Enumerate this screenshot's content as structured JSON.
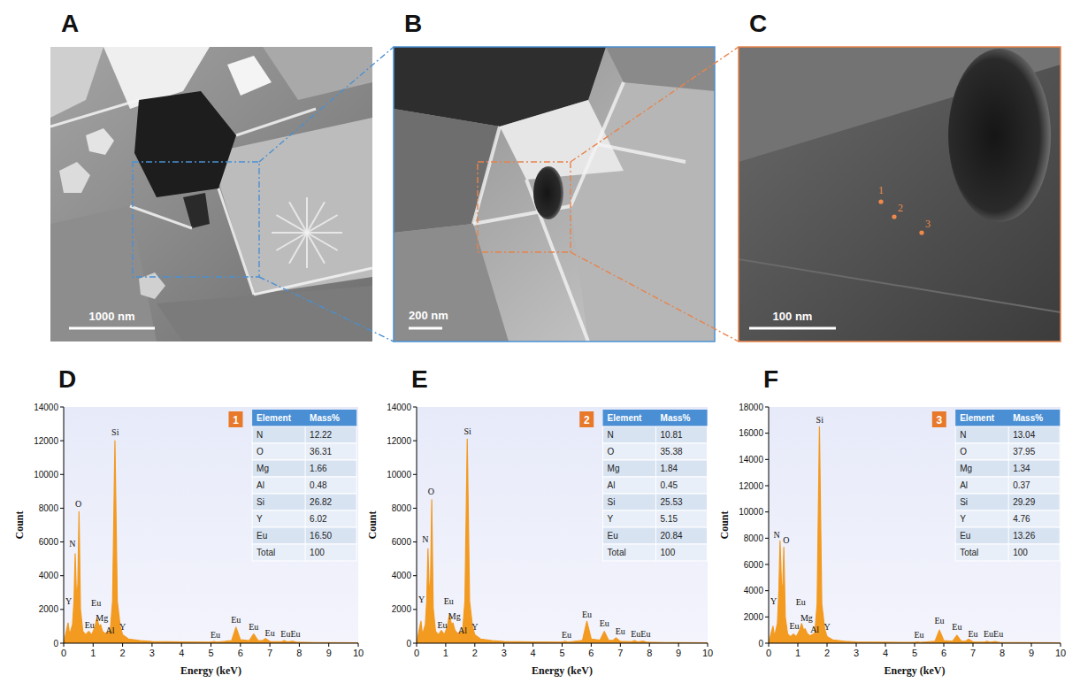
{
  "panels": [
    {
      "label": "A",
      "scale_bar": "1000 nm"
    },
    {
      "label": "B",
      "scale_bar": "200 nm"
    },
    {
      "label": "C",
      "scale_bar": "100 nm",
      "points": [
        "1",
        "2",
        "3"
      ]
    }
  ],
  "chart_data": [
    {
      "type": "area",
      "panel_label": "D",
      "badge": "1",
      "x_label": "Energy (keV)",
      "y_label": "Count",
      "color": "#f39a20",
      "x": [
        0,
        0.1,
        0.15,
        0.2,
        0.3,
        0.35,
        0.39,
        0.44,
        0.48,
        0.52,
        0.57,
        0.65,
        0.75,
        0.85,
        0.95,
        1.05,
        1.13,
        1.2,
        1.25,
        1.32,
        1.42,
        1.49,
        1.58,
        1.66,
        1.74,
        1.82,
        1.92,
        2.0,
        2.2,
        2.6,
        3.0,
        4.0,
        5.0,
        5.1,
        5.2,
        5.7,
        5.85,
        6.0,
        6.3,
        6.45,
        6.6,
        6.75,
        6.85,
        7.0,
        7.4,
        7.48,
        7.6,
        7.78,
        7.9,
        8.5,
        10
      ],
      "values": [
        0,
        800,
        1200,
        500,
        1100,
        2500,
        5300,
        2500,
        3500,
        7800,
        2000,
        700,
        500,
        700,
        500,
        900,
        1500,
        1000,
        1100,
        700,
        550,
        650,
        700,
        2500,
        12000,
        2500,
        1000,
        500,
        250,
        150,
        100,
        70,
        60,
        100,
        60,
        150,
        950,
        200,
        150,
        550,
        150,
        150,
        280,
        100,
        80,
        150,
        70,
        120,
        60,
        40,
        20
      ],
      "xlim": [
        0,
        10
      ],
      "xticks": [
        0,
        1,
        2,
        3,
        4,
        5,
        6,
        7,
        8,
        9,
        10
      ],
      "ylim": [
        0,
        14000
      ],
      "yticks": [
        0,
        2000,
        4000,
        6000,
        8000,
        10000,
        12000,
        14000
      ],
      "annotations": [
        {
          "text": "Y",
          "x": 0.17,
          "y": 2300
        },
        {
          "text": "N",
          "x": 0.3,
          "y": 5700
        },
        {
          "text": "O",
          "x": 0.5,
          "y": 8100
        },
        {
          "text": "Eu",
          "x": 0.88,
          "y": 900
        },
        {
          "text": "Eu",
          "x": 1.1,
          "y": 2200
        },
        {
          "text": "Mg",
          "x": 1.3,
          "y": 1300
        },
        {
          "text": "Al",
          "x": 1.58,
          "y": 600
        },
        {
          "text": "Y",
          "x": 2.0,
          "y": 800
        },
        {
          "text": "Si",
          "x": 1.75,
          "y": 12300
        },
        {
          "text": "Eu",
          "x": 5.15,
          "y": 300
        },
        {
          "text": "Eu",
          "x": 5.85,
          "y": 1200
        },
        {
          "text": "Eu",
          "x": 6.45,
          "y": 800
        },
        {
          "text": "Eu",
          "x": 7.0,
          "y": 400
        },
        {
          "text": "EuEu",
          "x": 7.7,
          "y": 350
        }
      ],
      "table": {
        "columns": [
          "Element",
          "Mass%"
        ],
        "rows": [
          [
            "N",
            "12.22"
          ],
          [
            "O",
            "36.31"
          ],
          [
            "Mg",
            "1.66"
          ],
          [
            "Al",
            "0.48"
          ],
          [
            "Si",
            "26.82"
          ],
          [
            "Y",
            "6.02"
          ],
          [
            "Eu",
            "16.50"
          ],
          [
            "Total",
            "100"
          ]
        ]
      }
    },
    {
      "type": "area",
      "panel_label": "E",
      "badge": "2",
      "x_label": "Energy (keV)",
      "y_label": "Count",
      "color": "#f39a20",
      "x": [
        0,
        0.1,
        0.15,
        0.2,
        0.3,
        0.35,
        0.39,
        0.44,
        0.48,
        0.52,
        0.57,
        0.65,
        0.75,
        0.85,
        0.95,
        1.05,
        1.13,
        1.2,
        1.25,
        1.32,
        1.42,
        1.49,
        1.58,
        1.66,
        1.74,
        1.82,
        1.92,
        2.0,
        2.2,
        2.6,
        3.0,
        4.0,
        5.0,
        5.1,
        5.2,
        5.7,
        5.85,
        6.0,
        6.3,
        6.45,
        6.6,
        6.75,
        6.85,
        7.0,
        7.4,
        7.48,
        7.6,
        7.78,
        7.9,
        8.5,
        10
      ],
      "values": [
        0,
        900,
        1300,
        500,
        1100,
        2600,
        5600,
        2700,
        3800,
        8500,
        2100,
        700,
        500,
        750,
        500,
        950,
        1700,
        1100,
        1200,
        750,
        550,
        650,
        700,
        2500,
        12100,
        2500,
        1000,
        500,
        250,
        150,
        100,
        70,
        60,
        110,
        60,
        170,
        1300,
        250,
        180,
        700,
        170,
        160,
        320,
        110,
        90,
        160,
        80,
        130,
        60,
        40,
        20
      ],
      "xlim": [
        0,
        10
      ],
      "xticks": [
        0,
        1,
        2,
        3,
        4,
        5,
        6,
        7,
        8,
        9,
        10
      ],
      "ylim": [
        0,
        14000
      ],
      "yticks": [
        0,
        2000,
        4000,
        6000,
        8000,
        10000,
        12000,
        14000
      ],
      "annotations": [
        {
          "text": "Y",
          "x": 0.17,
          "y": 2400
        },
        {
          "text": "N",
          "x": 0.3,
          "y": 6000
        },
        {
          "text": "O",
          "x": 0.5,
          "y": 8800
        },
        {
          "text": "Eu",
          "x": 0.88,
          "y": 900
        },
        {
          "text": "Eu",
          "x": 1.1,
          "y": 2300
        },
        {
          "text": "Mg",
          "x": 1.3,
          "y": 1400
        },
        {
          "text": "Al",
          "x": 1.58,
          "y": 600
        },
        {
          "text": "Y",
          "x": 2.0,
          "y": 800
        },
        {
          "text": "Si",
          "x": 1.75,
          "y": 12400
        },
        {
          "text": "Eu",
          "x": 5.15,
          "y": 300
        },
        {
          "text": "Eu",
          "x": 5.85,
          "y": 1500
        },
        {
          "text": "Eu",
          "x": 6.45,
          "y": 1000
        },
        {
          "text": "Eu",
          "x": 7.0,
          "y": 500
        },
        {
          "text": "EuEu",
          "x": 7.7,
          "y": 350
        }
      ],
      "table": {
        "columns": [
          "Element",
          "Mass%"
        ],
        "rows": [
          [
            "N",
            "10.81"
          ],
          [
            "O",
            "35.38"
          ],
          [
            "Mg",
            "1.84"
          ],
          [
            "Al",
            "0.45"
          ],
          [
            "Si",
            "25.53"
          ],
          [
            "Y",
            "5.15"
          ],
          [
            "Eu",
            "20.84"
          ],
          [
            "Total",
            "100"
          ]
        ]
      }
    },
    {
      "type": "area",
      "panel_label": "F",
      "badge": "3",
      "x_label": "Energy (keV)",
      "y_label": "Count",
      "color": "#f39a20",
      "x": [
        0,
        0.1,
        0.15,
        0.2,
        0.3,
        0.35,
        0.39,
        0.44,
        0.48,
        0.52,
        0.57,
        0.65,
        0.75,
        0.85,
        0.95,
        1.05,
        1.13,
        1.2,
        1.25,
        1.32,
        1.42,
        1.49,
        1.58,
        1.66,
        1.74,
        1.82,
        1.92,
        2.0,
        2.2,
        2.6,
        3.0,
        4.0,
        5.0,
        5.1,
        5.2,
        5.7,
        5.85,
        6.0,
        6.3,
        6.45,
        6.6,
        6.75,
        6.85,
        7.0,
        7.4,
        7.48,
        7.6,
        7.78,
        7.9,
        8.5,
        10
      ],
      "values": [
        0,
        900,
        1300,
        500,
        1500,
        4000,
        7800,
        4500,
        4000,
        7300,
        2000,
        700,
        500,
        700,
        500,
        950,
        1500,
        1000,
        1100,
        750,
        550,
        650,
        750,
        3000,
        16500,
        3000,
        1100,
        500,
        250,
        150,
        100,
        70,
        60,
        100,
        60,
        150,
        1000,
        200,
        150,
        600,
        150,
        150,
        300,
        100,
        80,
        150,
        70,
        120,
        60,
        40,
        20
      ],
      "xlim": [
        0,
        10
      ],
      "xticks": [
        0,
        1,
        2,
        3,
        4,
        5,
        6,
        7,
        8,
        9,
        10
      ],
      "ylim": [
        0,
        18000
      ],
      "yticks": [
        0,
        2000,
        4000,
        6000,
        8000,
        10000,
        12000,
        14000,
        16000,
        18000
      ],
      "annotations": [
        {
          "text": "Y",
          "x": 0.17,
          "y": 3000
        },
        {
          "text": "N",
          "x": 0.28,
          "y": 8000
        },
        {
          "text": "O",
          "x": 0.6,
          "y": 7600
        },
        {
          "text": "Eu",
          "x": 0.88,
          "y": 1100
        },
        {
          "text": "Eu",
          "x": 1.1,
          "y": 2900
        },
        {
          "text": "Mg",
          "x": 1.3,
          "y": 1700
        },
        {
          "text": "Al",
          "x": 1.58,
          "y": 800
        },
        {
          "text": "Y",
          "x": 2.0,
          "y": 1000
        },
        {
          "text": "Si",
          "x": 1.75,
          "y": 16800
        },
        {
          "text": "Eu",
          "x": 5.15,
          "y": 400
        },
        {
          "text": "Eu",
          "x": 5.85,
          "y": 1500
        },
        {
          "text": "Eu",
          "x": 6.45,
          "y": 1000
        },
        {
          "text": "Eu",
          "x": 7.0,
          "y": 500
        },
        {
          "text": "EuEu",
          "x": 7.7,
          "y": 450
        }
      ],
      "table": {
        "columns": [
          "Element",
          "Mass%"
        ],
        "rows": [
          [
            "N",
            "13.04"
          ],
          [
            "O",
            "37.95"
          ],
          [
            "Mg",
            "1.34"
          ],
          [
            "Al",
            "0.37"
          ],
          [
            "Si",
            "29.29"
          ],
          [
            "Y",
            "4.76"
          ],
          [
            "Eu",
            "13.26"
          ],
          [
            "Total",
            "100"
          ]
        ]
      }
    }
  ]
}
